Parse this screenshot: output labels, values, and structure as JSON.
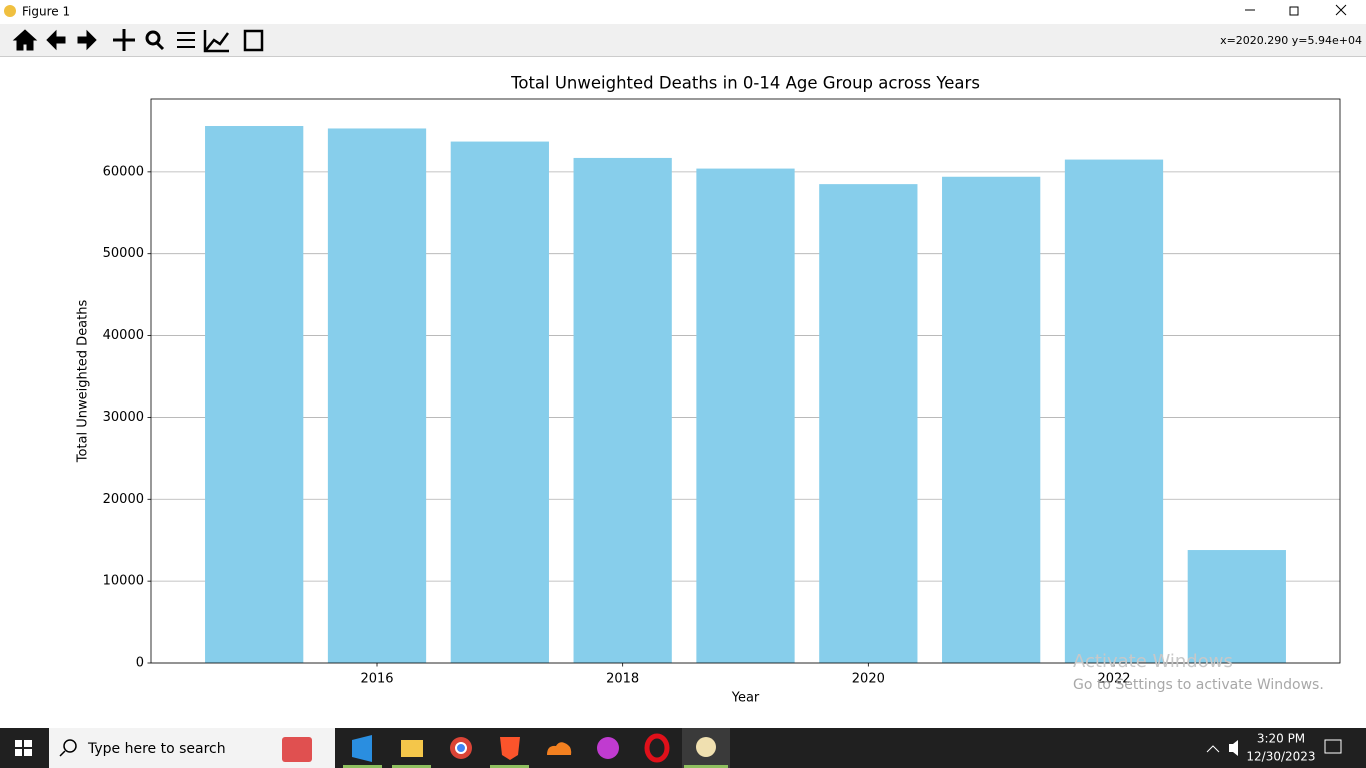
{
  "window": {
    "title": "Figure 1",
    "status": "x=2020.290 y=5.94e+04"
  },
  "chart_data": {
    "type": "bar",
    "title": "Total Unweighted Deaths in 0-14 Age Group across Years",
    "x_label": "Year",
    "y_label": "Total Unweighted Deaths",
    "x": [
      2015,
      2016,
      2017,
      2018,
      2019,
      2020,
      2021,
      2022,
      2023
    ],
    "values": [
      65600,
      65300,
      63700,
      61700,
      60400,
      58500,
      59400,
      61500,
      13800
    ],
    "color": "#87ceeb",
    "xlim": [
      2014.16,
      2023.84
    ],
    "xticks": [
      2016,
      2018,
      2020,
      2022
    ],
    "ylim": [
      0,
      68900
    ],
    "yticks": [
      0,
      10000,
      20000,
      30000,
      40000,
      50000,
      60000
    ],
    "grid": "y"
  },
  "watermark": {
    "line1": "Activate Windows",
    "line2": "Go to Settings to activate Windows."
  },
  "taskbar": {
    "search": "Type here to search",
    "time": "3:20 PM",
    "date": "12/30/2023"
  }
}
